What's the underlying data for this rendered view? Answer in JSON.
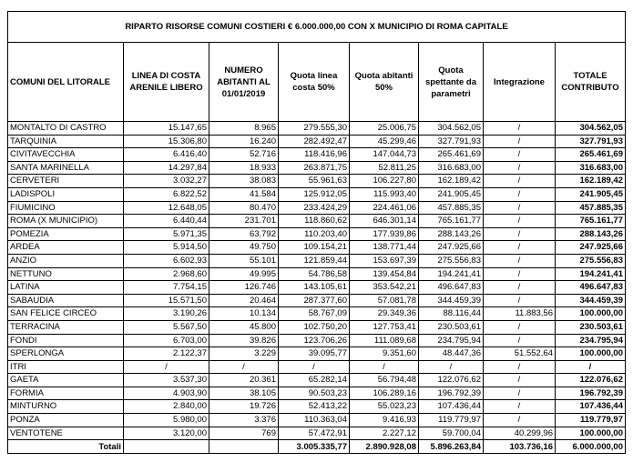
{
  "table": {
    "title": "RIPARTO RISORSE COMUNI COSTIERI € 6.000.000,00 CON X MUNICIPIO DI ROMA CAPITALE",
    "headers": [
      "COMUNI DEL LITORALE",
      "LINEA DI COSTA ARENILE LIBERO",
      "NUMERO ABITANTI AL 01/01/2019",
      "Quota linea costa 50%",
      "Quota abitanti 50%",
      "Quota spettante da parametri",
      "Integrazione",
      "TOTALE CONTRIBUTO"
    ],
    "rows": [
      [
        "MONTALTO DI CASTRO",
        "15.147,65",
        "8.965",
        "279.555,30",
        "25.006,75",
        "304.562,05",
        "/",
        "304.562,05"
      ],
      [
        "TARQUINIA",
        "15.306,80",
        "16.240",
        "282.492,47",
        "45.299,46",
        "327.791,93",
        "/",
        "327.791,93"
      ],
      [
        "CIVITAVECCHIA",
        "6.416,40",
        "52.716",
        "118.416,96",
        "147.044,73",
        "265.461,69",
        "/",
        "265.461,69"
      ],
      [
        "SANTA MARINELLA",
        "14.297,84",
        "18.933",
        "263.871,75",
        "52.811,25",
        "316.683,00",
        "/",
        "316.683,00"
      ],
      [
        "CERVETERI",
        "3.032,27",
        "38.083",
        "55.961,63",
        "106.227,80",
        "162.189,42",
        "/",
        "162.189,42"
      ],
      [
        "LADISPOLI",
        "6.822,52",
        "41.584",
        "125.912,05",
        "115.993,40",
        "241.905,45",
        "/",
        "241.905,45"
      ],
      [
        "FIUMICINO",
        "12.648,05",
        "80.470",
        "233.424,29",
        "224.461,06",
        "457.885,35",
        "/",
        "457.885,35"
      ],
      [
        "ROMA (X MUNICIPIO)",
        "6.440,44",
        "231.701",
        "118.860,62",
        "646.301,14",
        "765.161,77",
        "/",
        "765.161,77"
      ],
      [
        "POMEZIA",
        "5.971,35",
        "63.792",
        "110.203,40",
        "177.939,86",
        "288.143,26",
        "/",
        "288.143,26"
      ],
      [
        "ARDEA",
        "5.914,50",
        "49.750",
        "109.154,21",
        "138.771,44",
        "247.925,66",
        "/",
        "247.925,66"
      ],
      [
        "ANZIO",
        "6.602,93",
        "55.101",
        "121.859,44",
        "153.697,39",
        "275.556,83",
        "/",
        "275.556,83"
      ],
      [
        "NETTUNO",
        "2.968,60",
        "49.995",
        "54.786,58",
        "139.454,84",
        "194.241,41",
        "/",
        "194.241,41"
      ],
      [
        "LATINA",
        "7.754,15",
        "126.746",
        "143.105,61",
        "353.542,21",
        "496.647,83",
        "/",
        "496.647,83"
      ],
      [
        "SABAUDIA",
        "15.571,50",
        "20.464",
        "287.377,60",
        "57.081,78",
        "344.459,39",
        "/",
        "344.459,39"
      ],
      [
        "SAN FELICE CIRCEO",
        "3.190,26",
        "10.134",
        "58.767,09",
        "29.349,36",
        "88.116,44",
        "11.883,56",
        "100.000,00"
      ],
      [
        "TERRACINA",
        "5.567,50",
        "45.800",
        "102.750,20",
        "127.753,41",
        "230.503,61",
        "/",
        "230.503,61"
      ],
      [
        "FONDI",
        "6.703,00",
        "39.826",
        "123.706,26",
        "111.089,68",
        "234.795,94",
        "/",
        "234.795,94"
      ],
      [
        "SPERLONGA",
        "2.122,37",
        "3.229",
        "39.095,77",
        "9.351,60",
        "48.447,36",
        "51.552,64",
        "100.000,00"
      ],
      [
        "ITRI",
        "/",
        "/",
        "/",
        "/",
        "/",
        "/",
        "/"
      ],
      [
        "GAETA",
        "3.537,30",
        "20.361",
        "65.282,14",
        "56.794,48",
        "122.076,62",
        "/",
        "122.076,62"
      ],
      [
        "FORMIA",
        "4.903,90",
        "38.105",
        "90.503,23",
        "106.289,16",
        "196.792,39",
        "/",
        "196.792,39"
      ],
      [
        "MINTURNO",
        "2.840,00",
        "19.726",
        "52.413,22",
        "55.023,23",
        "107.436,44",
        "/",
        "107.436,44"
      ],
      [
        "PONZA",
        "5.980,00",
        "3.376",
        "110.363,04",
        "9.416,93",
        "119.779,97",
        "/",
        "119.779,97"
      ],
      [
        "VENTOTENE",
        "3.120,00",
        "769",
        "57.472,91",
        "2.227,12",
        "59.700,04",
        "40.299,96",
        "100.000,00"
      ]
    ],
    "totals": {
      "label": "Totali",
      "values": [
        "3.005.335,77",
        "2.890.928,08",
        "5.896.263,84",
        "103.736,16",
        "6.000.000,00"
      ]
    }
  }
}
